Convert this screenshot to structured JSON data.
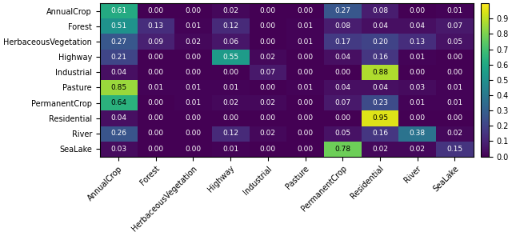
{
  "chart_data": {
    "type": "heatmap",
    "x_categories": [
      "AnnualCrop",
      "Forest",
      "HerbaceousVegetation",
      "Highway",
      "Industrial",
      "Pasture",
      "PermanentCrop",
      "Residential",
      "River",
      "SeaLake"
    ],
    "y_categories": [
      "AnnualCrop",
      "Forest",
      "HerbaceousVegetation",
      "Highway",
      "Industrial",
      "Pasture",
      "PermanentCrop",
      "Residential",
      "River",
      "SeaLake"
    ],
    "values": [
      [
        0.61,
        0.0,
        0.0,
        0.02,
        0.0,
        0.0,
        0.27,
        0.08,
        0.0,
        0.01
      ],
      [
        0.51,
        0.13,
        0.01,
        0.12,
        0.0,
        0.01,
        0.08,
        0.04,
        0.04,
        0.07
      ],
      [
        0.27,
        0.09,
        0.02,
        0.06,
        0.0,
        0.01,
        0.17,
        0.2,
        0.13,
        0.05
      ],
      [
        0.21,
        0.0,
        0.0,
        0.55,
        0.02,
        0.0,
        0.04,
        0.16,
        0.01,
        0.0
      ],
      [
        0.04,
        0.0,
        0.0,
        0.0,
        0.07,
        0.0,
        0.0,
        0.88,
        0.0,
        0.0
      ],
      [
        0.85,
        0.01,
        0.01,
        0.01,
        0.0,
        0.01,
        0.04,
        0.04,
        0.03,
        0.01
      ],
      [
        0.64,
        0.0,
        0.01,
        0.02,
        0.02,
        0.0,
        0.07,
        0.23,
        0.01,
        0.01
      ],
      [
        0.04,
        0.0,
        0.0,
        0.0,
        0.0,
        0.0,
        0.0,
        0.95,
        0.0,
        0.0
      ],
      [
        0.26,
        0.0,
        0.0,
        0.12,
        0.02,
        0.0,
        0.05,
        0.16,
        0.38,
        0.02
      ],
      [
        0.03,
        0.0,
        0.0,
        0.01,
        0.0,
        0.0,
        0.78,
        0.02,
        0.02,
        0.15
      ]
    ],
    "value_labels": [
      [
        "0.61",
        "0.00",
        "0.00",
        "0.02",
        "0.00",
        "0.00",
        "0.27",
        "0.08",
        "0.00",
        "0.01"
      ],
      [
        "0.51",
        "0.13",
        "0.01",
        "0.12",
        "0.00",
        "0.01",
        "0.08",
        "0.04",
        "0.04",
        "0.07"
      ],
      [
        "0.27",
        "0.09",
        "0.02",
        "0.06",
        "0.00",
        "0.01",
        "0.17",
        "0.20",
        "0.13",
        "0.05"
      ],
      [
        "0.21",
        "0.00",
        "0.00",
        "0.55",
        "0.02",
        "0.00",
        "0.04",
        "0.16",
        "0.01",
        "0.00"
      ],
      [
        "0.04",
        "0.00",
        "0.00",
        "0.00",
        "0.07",
        "0.00",
        "0.00",
        "0.88",
        "0.00",
        "0.00"
      ],
      [
        "0.85",
        "0.01",
        "0.01",
        "0.01",
        "0.00",
        "0.01",
        "0.04",
        "0.04",
        "0.03",
        "0.01"
      ],
      [
        "0.64",
        "0.00",
        "0.01",
        "0.02",
        "0.02",
        "0.00",
        "0.07",
        "0.23",
        "0.01",
        "0.01"
      ],
      [
        "0.04",
        "0.00",
        "0.00",
        "0.00",
        "0.00",
        "0.00",
        "0.00",
        "0.95",
        "0.00",
        "0.00"
      ],
      [
        "0.26",
        "0.00",
        "0.00",
        "0.12",
        "0.02",
        "0.00",
        "0.05",
        "0.16",
        "0.38",
        "0.02"
      ],
      [
        "0.03",
        "0.00",
        "0.00",
        "0.01",
        "0.00",
        "0.00",
        "0.78",
        "0.02",
        "0.02",
        "0.15"
      ]
    ],
    "data_labels": true,
    "color_range": [
      0.0,
      1.0
    ],
    "color_ticks": [
      {
        "value": 0,
        "label": "0.0"
      },
      0.1,
      0.2,
      0.3,
      0.4,
      0.5,
      0.6,
      0.7,
      0.8,
      0.9
    ]
  }
}
